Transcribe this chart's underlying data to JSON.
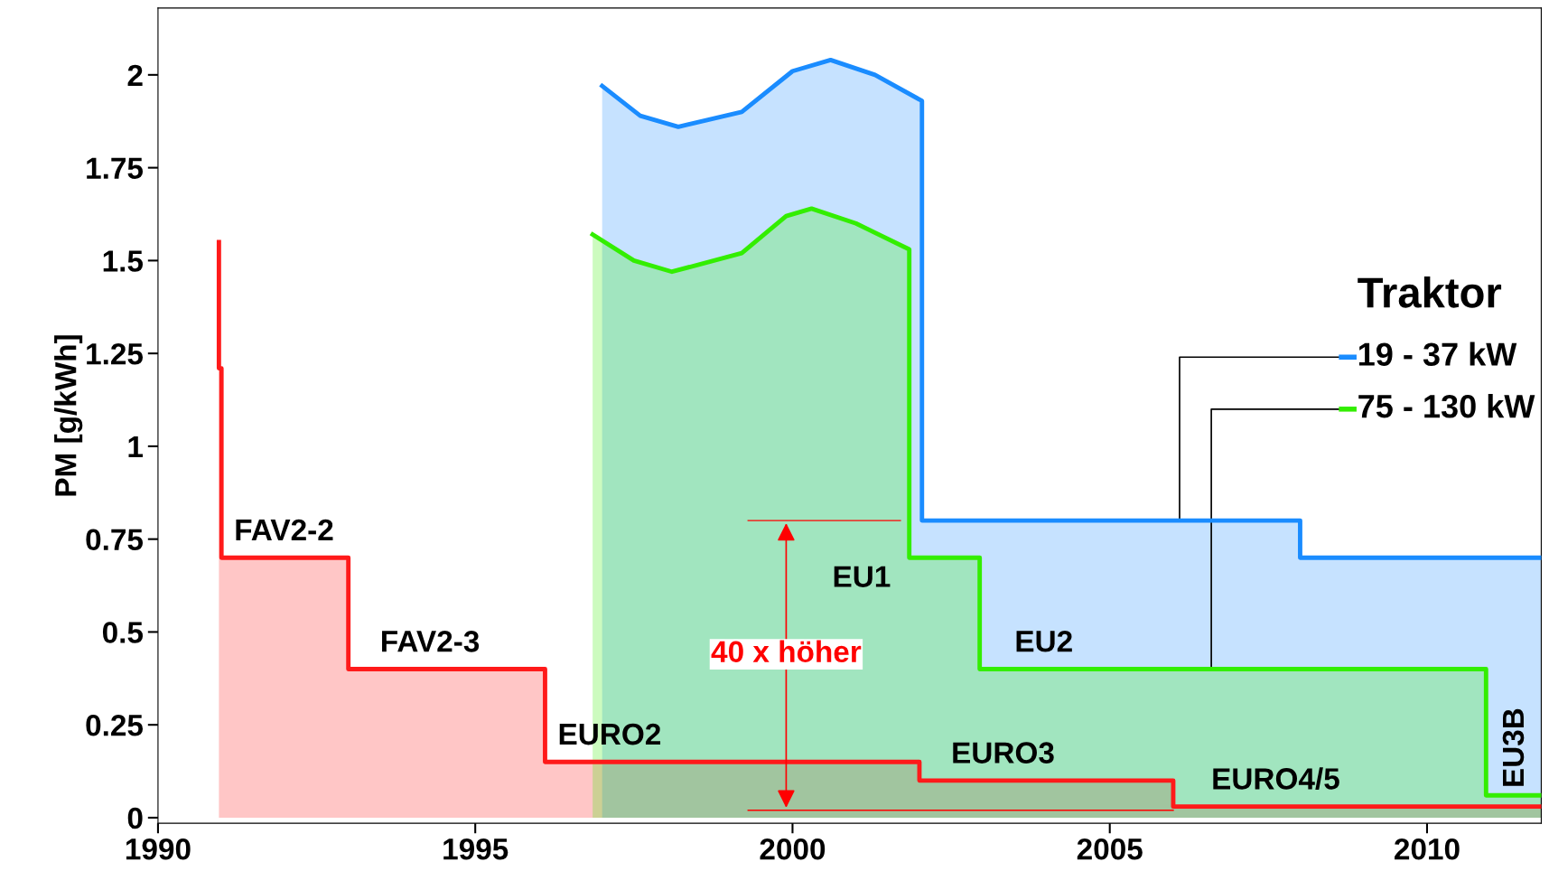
{
  "chart_data": {
    "type": "area",
    "ylabel": "PM [g/kWh]",
    "legend_title": "Traktor",
    "xlim": [
      1990,
      2011.8
    ],
    "xticks": [
      1990,
      1995,
      2000,
      2005,
      2010
    ],
    "ylim": [
      -0.015,
      2.18
    ],
    "yticks": [
      0,
      0.25,
      0.5,
      0.75,
      1,
      1.25,
      1.5,
      1.75,
      2
    ],
    "grid": false,
    "legend": "right",
    "series": [
      {
        "color": "#ff1a1a",
        "x": [
          1990.96,
          1990.96,
          1991.0,
          1991.0,
          1993,
          1993,
          1996.1,
          1996.1,
          2002,
          2002,
          2006,
          2006,
          2011.8
        ],
        "values": [
          1.55,
          1.21,
          1.21,
          0.7,
          0.7,
          0.4,
          0.4,
          0.15,
          0.15,
          0.1,
          0.1,
          0.03,
          0.03
        ]
      },
      {
        "name": "19 - 37 kW",
        "color": "#1a8cff",
        "x": [
          1997,
          1997.6,
          1998.2,
          1999.2,
          2000.0,
          2000.6,
          2001.3,
          2002.04,
          2002.04,
          2008,
          2008,
          2011.8
        ],
        "values": [
          1.97,
          1.89,
          1.86,
          1.9,
          2.01,
          2.04,
          2.0,
          1.93,
          0.8,
          0.8,
          0.7,
          0.7
        ]
      },
      {
        "name": "75 - 130 kW",
        "color": "#33ee00",
        "x": [
          1996.85,
          1997.5,
          1998.1,
          1999.2,
          1999.9,
          2000.3,
          2001.0,
          2001.84,
          2001.84,
          2002.95,
          2002.95,
          2010.93,
          2010.93,
          2011.8
        ],
        "values": [
          1.57,
          1.5,
          1.47,
          1.52,
          1.62,
          1.64,
          1.6,
          1.53,
          0.7,
          0.7,
          0.4,
          0.4,
          0.06,
          0.06
        ]
      }
    ],
    "annotations": [
      {
        "text": "FAV2-2",
        "x": 1991.2,
        "y": 0.7
      },
      {
        "text": "FAV2-3",
        "x": 1993.5,
        "y": 0.4
      },
      {
        "text": "EURO2",
        "x": 1996.3,
        "y": 0.15
      },
      {
        "text": "EURO3",
        "x": 2002.5,
        "y": 0.1
      },
      {
        "text": "EURO4/5",
        "x": 2006.6,
        "y": 0.03
      },
      "EU1",
      {
        "text": "EU2",
        "x": 2003.5,
        "y": 0.4
      },
      {
        "text": "EU3B",
        "x": 2011.4,
        "y": 0.06
      },
      "40 x höher"
    ]
  }
}
